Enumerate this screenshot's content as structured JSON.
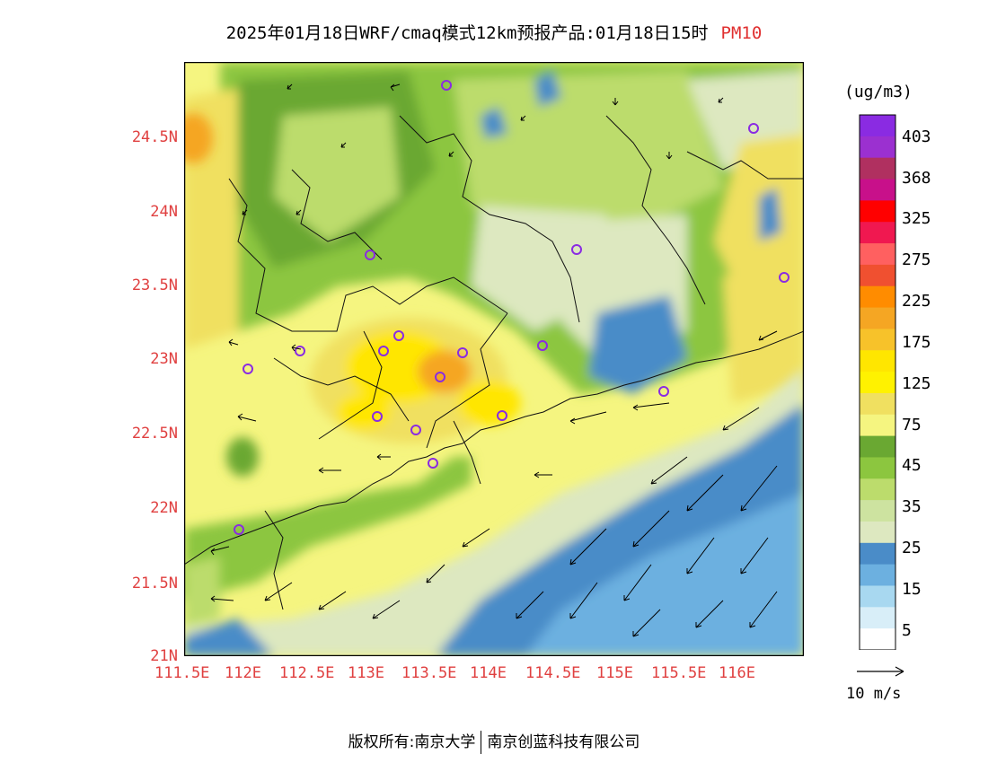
{
  "title": "2025年01月18日WRF/cmaq模式12km预报产品:01月18日15时",
  "pollutant": "PM10",
  "unit_label": "(ug/m3)",
  "lat_ticks": [
    "24.5N",
    "24N",
    "23.5N",
    "23N",
    "22.5N",
    "22N",
    "21.5N",
    "21N"
  ],
  "lon_ticks": [
    "111.5E",
    "112E",
    "112.5E",
    "113E",
    "113.5E",
    "114E",
    "114.5E",
    "115E",
    "115.5E",
    "116E"
  ],
  "colorbar": {
    "labels": [
      "403",
      "368",
      "325",
      "275",
      "225",
      "175",
      "125",
      "75",
      "45",
      "35",
      "25",
      "15",
      "5"
    ],
    "colors": [
      "#8a2be2",
      "#9b30d0",
      "#b03060",
      "#c8108a",
      "#ff0000",
      "#f01850",
      "#ff6060",
      "#f05030",
      "#ff8c00",
      "#f5a623",
      "#f7c22a",
      "#ffe600",
      "#fff200",
      "#f0e060",
      "#f5f580",
      "#6aa832",
      "#8cc63f",
      "#bcdc6c",
      "#cde3a0",
      "#dde8c0",
      "#4a8cc8",
      "#6cb0e0",
      "#a8d8f0",
      "#d8eef8",
      "#ffffff"
    ]
  },
  "vector_scale_label": "10 m/s",
  "copyright": {
    "left": "版权所有:南京大学",
    "right": "南京创蓝科技有限公司"
  },
  "colors": {
    "tick_label": "#e04040",
    "ocean_deep": "#4a8cc8",
    "ocean_mid": "#6cb0e0",
    "land_green_dark": "#6aa832",
    "land_green": "#8cc63f",
    "land_green_light": "#bcdc6c",
    "land_pale": "#dde8c0",
    "land_yellow_pale": "#f5f580",
    "land_yellow": "#f0e060",
    "hot_yellow": "#ffe600",
    "hot_orange": "#f5a623",
    "station_marker": "#8a2be2"
  }
}
